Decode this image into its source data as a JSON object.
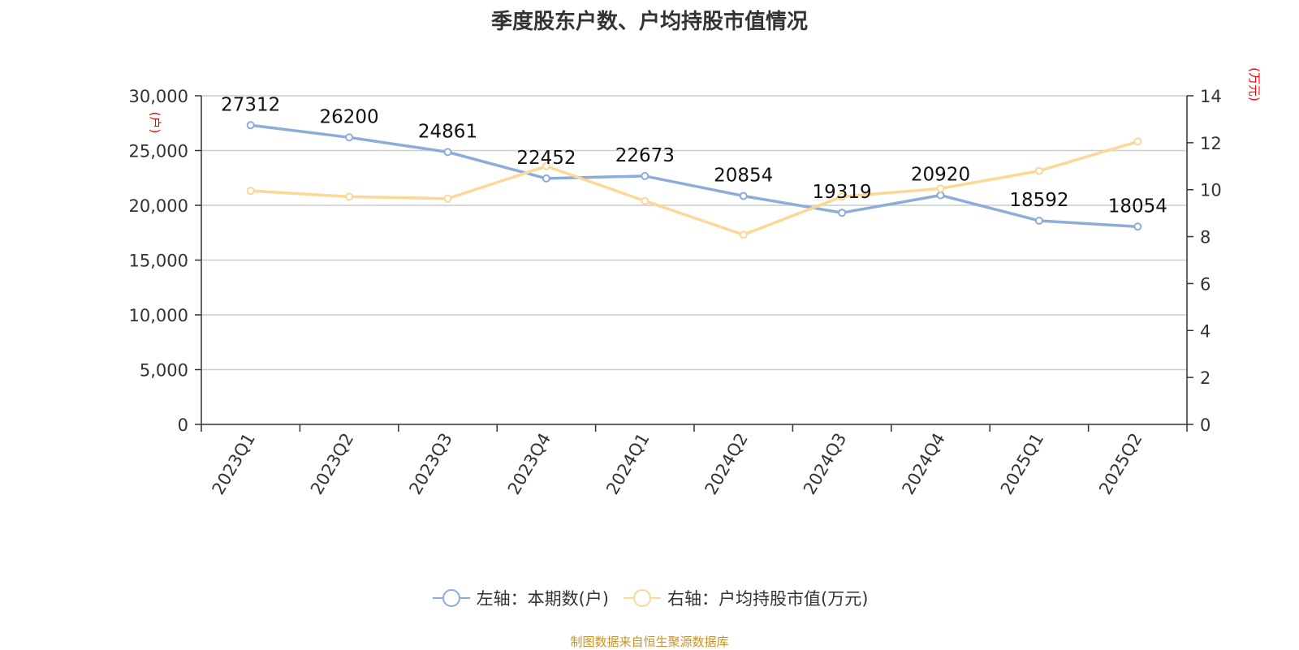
{
  "title": "季度股东户数、户均持股市值情况",
  "source": "制图数据来自恒生聚源数据库",
  "colors": {
    "series1": "#8eacd9",
    "series2": "#fcd796",
    "grid": "#cccccc",
    "axis": "#333333",
    "unit_label": "#ff0000",
    "source_text": "#c8942a"
  },
  "legend": {
    "series1_label": "左轴：本期数(户)",
    "series2_label": "右轴：户均持股市值(万元)"
  },
  "chart_data": {
    "type": "line",
    "categories": [
      "2023Q1",
      "2023Q2",
      "2023Q3",
      "2023Q4",
      "2024Q1",
      "2024Q2",
      "2024Q3",
      "2024Q4",
      "2025Q1",
      "2025Q2"
    ],
    "series": [
      {
        "name": "左轴：本期数(户)",
        "axis": "left",
        "values": [
          27312,
          26200,
          24861,
          22452,
          22673,
          20854,
          19319,
          20920,
          18592,
          18054
        ],
        "data_labels": [
          "27312",
          "26200",
          "24861",
          "22452",
          "22673",
          "20854",
          "19319",
          "20920",
          "18592",
          "18054"
        ]
      },
      {
        "name": "右轴：户均持股市值(万元)",
        "axis": "right",
        "values": [
          9.95,
          9.7,
          9.62,
          11.0,
          9.52,
          8.08,
          9.7,
          10.05,
          10.8,
          12.05
        ]
      }
    ],
    "y_left": {
      "unit": "(户)",
      "ylim": [
        0,
        30000
      ],
      "ticks": [
        0,
        5000,
        10000,
        15000,
        20000,
        25000,
        30000
      ],
      "tick_labels": [
        "0",
        "5,000",
        "10,000",
        "15,000",
        "20,000",
        "25,000",
        "30,000"
      ]
    },
    "y_right": {
      "unit": "(万元)",
      "ylim": [
        0,
        14
      ],
      "ticks": [
        0,
        2,
        4,
        6,
        8,
        10,
        12,
        14
      ],
      "tick_labels": [
        "0",
        "2",
        "4",
        "6",
        "8",
        "10",
        "12",
        "14"
      ]
    },
    "grid": true,
    "legend_position": "bottom"
  }
}
